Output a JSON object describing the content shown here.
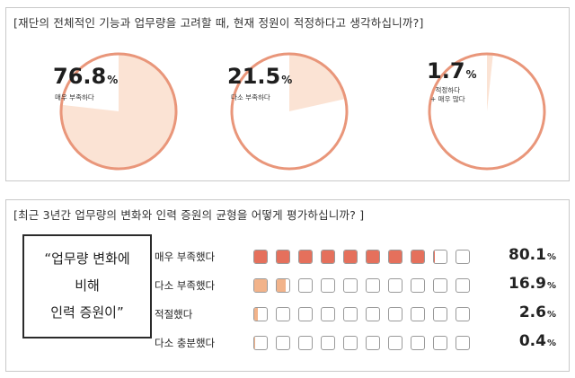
{
  "panel1": {
    "title": "[재단의 전체적인 기능과 업무량을 고려할 때, 현재 정원이 적정하다고 생각하십니까?]"
  },
  "panel2": {
    "title": "[최근 3년간 업무량의 변화와 인력 증원의 균형을 어떻게 평가하십니까? ]",
    "quote_lines": [
      "“업무량 변화에",
      "비해",
      "인력 증원이”"
    ]
  },
  "colors": {
    "pie_fill": "#fbe3d4",
    "pie_ring": "#e9967a",
    "cell_red": "#e5705c",
    "cell_orange": "#f2b38a",
    "cell_border": "#9a9a9a"
  },
  "chart_data": [
    {
      "type": "pie",
      "title": "[재단의 전체적인 기능과 업무량을 고려할 때, 현재 정원이 적정하다고 생각하십니까?]",
      "series": [
        {
          "value": 76.8,
          "label": "매우 부족하다",
          "display": "76.8"
        },
        {
          "value": 21.5,
          "label": "다소 부족하다",
          "display": "21.5"
        },
        {
          "value": 1.7,
          "label": "적정하다\n+ 매우 많다",
          "display": "1.7",
          "label_lines": [
            "적정하다",
            "+ 매우 많다"
          ]
        }
      ],
      "unit": "%"
    },
    {
      "type": "bar",
      "title": "[최근 3년간 업무량의 변화와 인력 증원의 균형을 어떻게 평가하십니까? ]",
      "categories": [
        "매우 부족했다",
        "다소 부족했다",
        "적절했다",
        "다소 충분했다"
      ],
      "values": [
        80.1,
        16.9,
        2.6,
        0.4
      ],
      "display": [
        "80.1",
        "16.9",
        "2.6",
        "0.4"
      ],
      "unit": "%",
      "cells_per_row": 10,
      "row_colors": [
        "#e5705c",
        "#f2b38a",
        "#f2b38a",
        "#f2b38a"
      ]
    }
  ]
}
